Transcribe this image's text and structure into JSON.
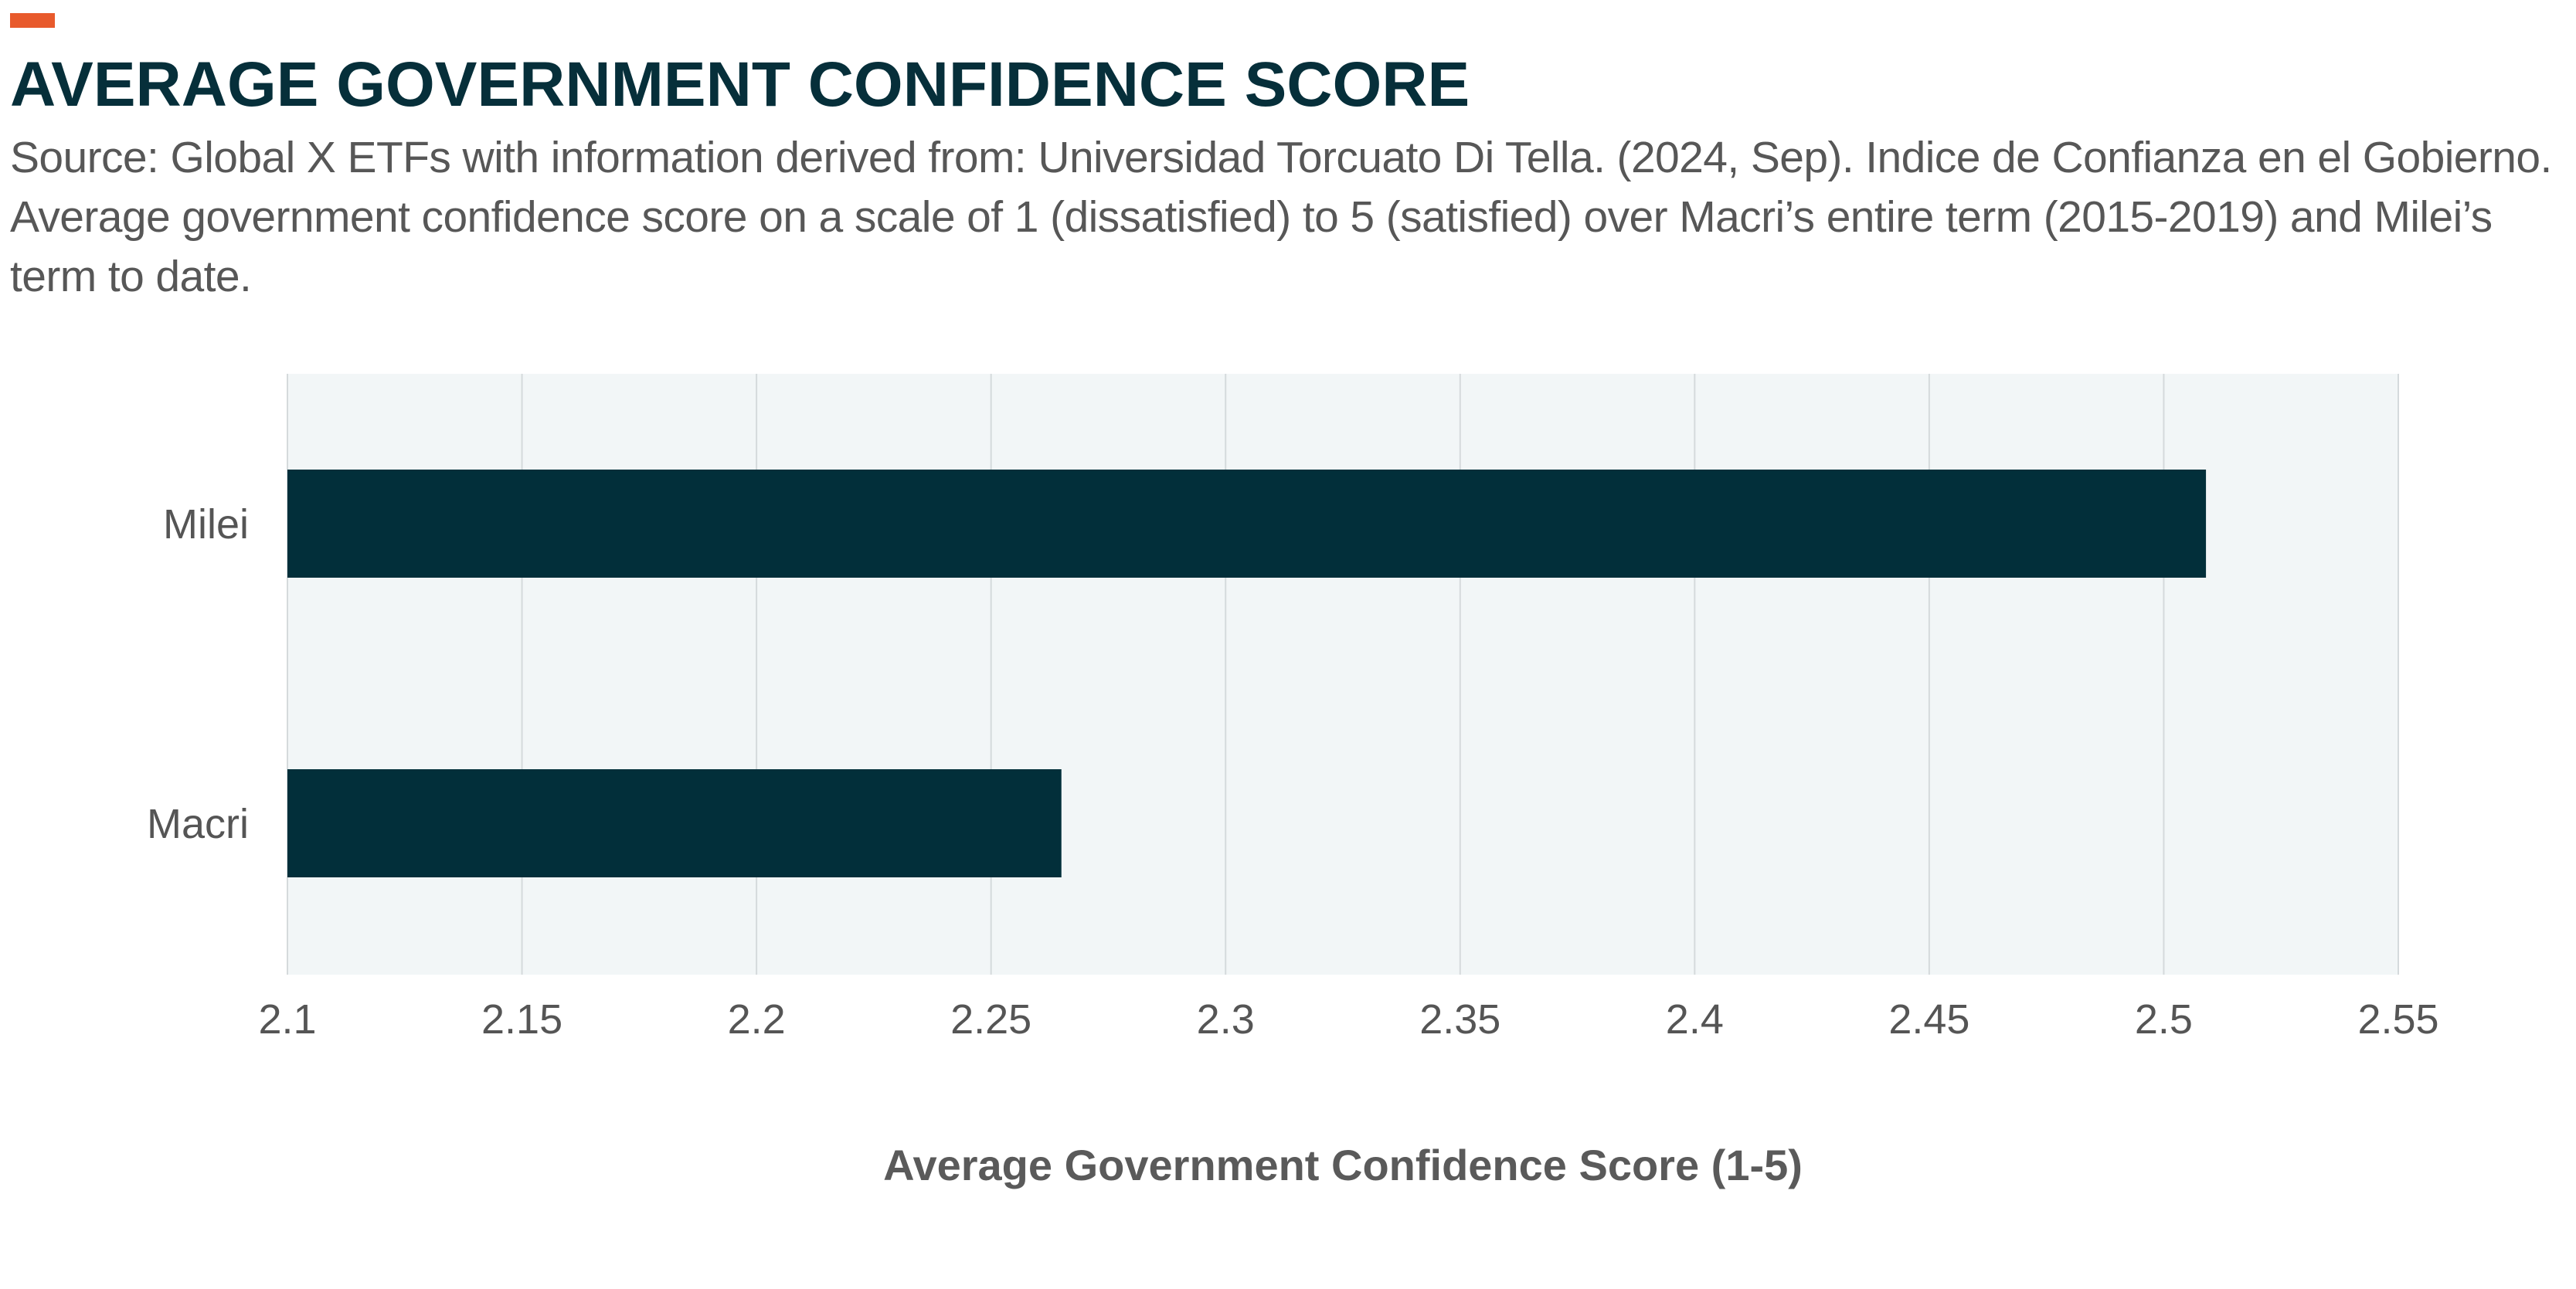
{
  "header": {
    "title": "AVERAGE GOVERNMENT CONFIDENCE SCORE",
    "subtitle": "Source: Global X ETFs with information derived from: Universidad Torcuato Di Tella. (2024, Sep). Indice de Confianza en el Gobierno. Average government confidence score on a scale of 1 (dissatisfied) to 5 (satisfied) over Macri’s entire term (2015-2019) and Milei’s term to date."
  },
  "colors": {
    "accent": "#e85a2c",
    "bar": "#022f3a",
    "plot_background": "#f2f6f7",
    "grid": "#d5dadc",
    "title": "#062f3a"
  },
  "chart_data": {
    "type": "bar",
    "orientation": "horizontal",
    "categories": [
      "Milei",
      "Macri"
    ],
    "values": [
      2.509,
      2.265
    ],
    "title": "AVERAGE GOVERNMENT CONFIDENCE SCORE",
    "xlabel": "Average Government Confidence Score (1-5)",
    "ylabel": "",
    "xlim": [
      2.1,
      2.55
    ],
    "xticks": [
      "2.1",
      "2.15",
      "2.2",
      "2.25",
      "2.3",
      "2.35",
      "2.4",
      "2.45",
      "2.5",
      "2.55"
    ],
    "grid": true,
    "legend": "none"
  }
}
